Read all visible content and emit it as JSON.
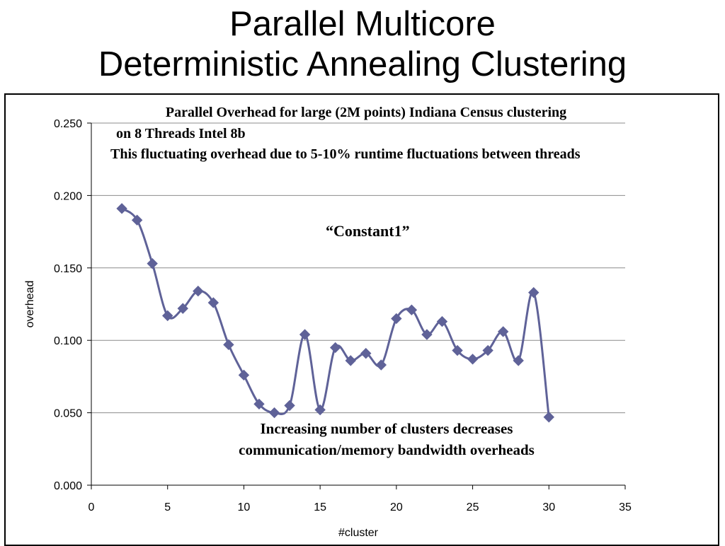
{
  "slide": {
    "title_line1": "Parallel Multicore",
    "title_line2": "Deterministic Annealing Clustering"
  },
  "annotations": {
    "heading_line1": "Parallel Overhead for large (2M points) Indiana Census clustering",
    "heading_line2": "on 8 Threads Intel 8b",
    "fluctuation_note": "This fluctuating overhead due to 5-10% runtime fluctuations between threads",
    "constant_label": "“Constant1”",
    "bottom_line1": "Increasing number of clusters decreases",
    "bottom_line2": "communication/memory bandwidth overheads"
  },
  "chart_data": {
    "type": "line",
    "xlabel": "#cluster",
    "ylabel": "overhead",
    "xlim": [
      0,
      35
    ],
    "ylim": [
      0.0,
      0.25
    ],
    "xticks": [
      "0",
      "5",
      "10",
      "15",
      "20",
      "25",
      "30",
      "35"
    ],
    "yticks": [
      "0.000",
      "0.050",
      "0.100",
      "0.150",
      "0.200",
      "0.250"
    ],
    "grid": "horizontal",
    "series_color": "#5f6298",
    "marker": "diamond",
    "x": [
      2,
      3,
      4,
      5,
      6,
      7,
      8,
      9,
      10,
      11,
      12,
      13,
      14,
      15,
      16,
      17,
      18,
      19,
      20,
      21,
      22,
      23,
      24,
      25,
      26,
      27,
      28,
      29,
      30
    ],
    "values": [
      0.191,
      0.183,
      0.153,
      0.117,
      0.122,
      0.134,
      0.126,
      0.097,
      0.076,
      0.056,
      0.05,
      0.055,
      0.104,
      0.052,
      0.095,
      0.086,
      0.091,
      0.083,
      0.115,
      0.121,
      0.104,
      0.113,
      0.093,
      0.087,
      0.093,
      0.106,
      0.086,
      0.133,
      0.047
    ]
  }
}
